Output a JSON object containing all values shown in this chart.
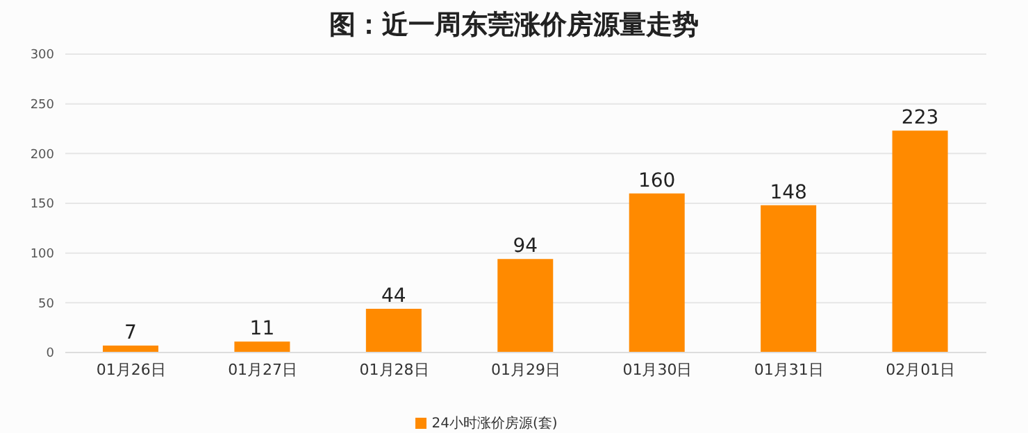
{
  "chart_data": {
    "type": "bar",
    "title": "图：近一周东莞涨价房源量走势",
    "categories": [
      "01月26日",
      "01月27日",
      "01月28日",
      "01月29日",
      "01月30日",
      "01月31日",
      "02月01日"
    ],
    "series": [
      {
        "name": "24小时涨价房源(套)",
        "color": "#ff8a00",
        "values": [
          7,
          11,
          44,
          94,
          160,
          148,
          223
        ]
      }
    ],
    "ylim": [
      0,
      300
    ],
    "yticks": [
      0,
      50,
      100,
      150,
      200,
      250,
      300
    ],
    "grid": "y",
    "legend": "bottom",
    "data_labels": true
  }
}
